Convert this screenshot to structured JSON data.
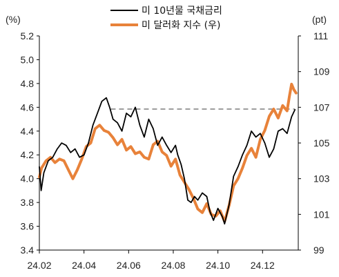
{
  "chart_data": {
    "type": "line",
    "title": "",
    "left_axis": {
      "unit": "(%)",
      "min": 3.4,
      "max": 5.2,
      "ticks": [
        "5.2",
        "5.0",
        "4.8",
        "4.6",
        "4.4",
        "4.2",
        "4.0",
        "3.8",
        "3.6",
        "3.4"
      ],
      "tick_values": [
        5.2,
        5.0,
        4.8,
        4.6,
        4.4,
        4.2,
        4.0,
        3.8,
        3.6,
        3.4
      ]
    },
    "right_axis": {
      "unit": "(pt)",
      "min": 99,
      "max": 111,
      "ticks": [
        "111",
        "109",
        "107",
        "105",
        "103",
        "101",
        "99"
      ],
      "tick_values": [
        111,
        109,
        107,
        105,
        103,
        101,
        99
      ]
    },
    "x_axis": {
      "ticks": [
        "24.02",
        "24.04",
        "24.06",
        "24.08",
        "24.10",
        "24.12"
      ],
      "tick_months": [
        1,
        3,
        5,
        7,
        9,
        11
      ],
      "min_month": 1,
      "max_month": 12.6
    },
    "reference_line": {
      "axis": "right",
      "value": 106.9,
      "from_month": 4.2,
      "to_month": 12.45,
      "style": "dashed",
      "color": "#999999"
    },
    "series": [
      {
        "name": "미 10년물 국채금리",
        "axis": "left",
        "color": "#000000",
        "points": [
          [
            1.0,
            4.1
          ],
          [
            1.08,
            3.9
          ],
          [
            1.2,
            4.05
          ],
          [
            1.4,
            4.15
          ],
          [
            1.6,
            4.18
          ],
          [
            1.8,
            4.25
          ],
          [
            2.0,
            4.3
          ],
          [
            2.2,
            4.28
          ],
          [
            2.4,
            4.22
          ],
          [
            2.6,
            4.25
          ],
          [
            2.8,
            4.18
          ],
          [
            3.0,
            4.2
          ],
          [
            3.2,
            4.3
          ],
          [
            3.4,
            4.45
          ],
          [
            3.6,
            4.55
          ],
          [
            3.8,
            4.65
          ],
          [
            4.0,
            4.68
          ],
          [
            4.15,
            4.6
          ],
          [
            4.3,
            4.5
          ],
          [
            4.5,
            4.47
          ],
          [
            4.7,
            4.4
          ],
          [
            4.9,
            4.55
          ],
          [
            5.1,
            4.52
          ],
          [
            5.3,
            4.6
          ],
          [
            5.5,
            4.45
          ],
          [
            5.7,
            4.35
          ],
          [
            5.9,
            4.5
          ],
          [
            6.1,
            4.42
          ],
          [
            6.3,
            4.28
          ],
          [
            6.5,
            4.35
          ],
          [
            6.7,
            4.28
          ],
          [
            6.9,
            4.22
          ],
          [
            7.1,
            4.28
          ],
          [
            7.2,
            4.2
          ],
          [
            7.35,
            4.12
          ],
          [
            7.5,
            4.0
          ],
          [
            7.65,
            3.82
          ],
          [
            7.8,
            3.8
          ],
          [
            7.95,
            3.85
          ],
          [
            8.1,
            3.82
          ],
          [
            8.3,
            3.88
          ],
          [
            8.5,
            3.85
          ],
          [
            8.65,
            3.72
          ],
          [
            8.8,
            3.65
          ],
          [
            9.0,
            3.75
          ],
          [
            9.2,
            3.68
          ],
          [
            9.3,
            3.62
          ],
          [
            9.5,
            3.78
          ],
          [
            9.7,
            4.02
          ],
          [
            9.9,
            4.1
          ],
          [
            10.1,
            4.2
          ],
          [
            10.3,
            4.28
          ],
          [
            10.5,
            4.4
          ],
          [
            10.7,
            4.35
          ],
          [
            10.9,
            4.38
          ],
          [
            11.1,
            4.3
          ],
          [
            11.3,
            4.18
          ],
          [
            11.5,
            4.25
          ],
          [
            11.7,
            4.4
          ],
          [
            11.9,
            4.42
          ],
          [
            12.1,
            4.38
          ],
          [
            12.3,
            4.52
          ],
          [
            12.45,
            4.58
          ]
        ]
      },
      {
        "name": "미 달러화 지수 (우)",
        "axis": "right",
        "color": "#E8823A",
        "points": [
          [
            1.0,
            103.1
          ],
          [
            1.1,
            103.6
          ],
          [
            1.3,
            104.0
          ],
          [
            1.5,
            104.2
          ],
          [
            1.7,
            103.9
          ],
          [
            1.9,
            104.1
          ],
          [
            2.1,
            104.0
          ],
          [
            2.3,
            103.5
          ],
          [
            2.5,
            103.0
          ],
          [
            2.7,
            103.5
          ],
          [
            2.9,
            104.1
          ],
          [
            3.1,
            104.8
          ],
          [
            3.3,
            105.0
          ],
          [
            3.5,
            105.8
          ],
          [
            3.7,
            106.0
          ],
          [
            3.9,
            105.7
          ],
          [
            4.1,
            105.6
          ],
          [
            4.3,
            105.3
          ],
          [
            4.5,
            104.9
          ],
          [
            4.7,
            105.2
          ],
          [
            4.9,
            104.6
          ],
          [
            5.1,
            104.8
          ],
          [
            5.3,
            104.4
          ],
          [
            5.5,
            104.5
          ],
          [
            5.7,
            104.2
          ],
          [
            5.9,
            104.1
          ],
          [
            6.1,
            104.9
          ],
          [
            6.3,
            105.1
          ],
          [
            6.5,
            104.5
          ],
          [
            6.7,
            104.3
          ],
          [
            6.9,
            103.7
          ],
          [
            7.1,
            104.1
          ],
          [
            7.3,
            103.2
          ],
          [
            7.5,
            102.8
          ],
          [
            7.7,
            102.4
          ],
          [
            7.9,
            101.9
          ],
          [
            8.1,
            101.3
          ],
          [
            8.3,
            101.1
          ],
          [
            8.5,
            101.6
          ],
          [
            8.7,
            101.0
          ],
          [
            8.9,
            100.9
          ],
          [
            9.1,
            101.2
          ],
          [
            9.3,
            100.6
          ],
          [
            9.5,
            101.5
          ],
          [
            9.7,
            102.6
          ],
          [
            9.9,
            103.0
          ],
          [
            10.1,
            103.6
          ],
          [
            10.3,
            104.3
          ],
          [
            10.5,
            104.7
          ],
          [
            10.7,
            104.2
          ],
          [
            10.9,
            105.2
          ],
          [
            11.1,
            105.7
          ],
          [
            11.3,
            106.5
          ],
          [
            11.5,
            106.9
          ],
          [
            11.7,
            106.4
          ],
          [
            11.9,
            107.1
          ],
          [
            12.1,
            106.8
          ],
          [
            12.2,
            107.6
          ],
          [
            12.3,
            108.3
          ],
          [
            12.4,
            108.0
          ],
          [
            12.5,
            107.8
          ]
        ]
      }
    ]
  }
}
